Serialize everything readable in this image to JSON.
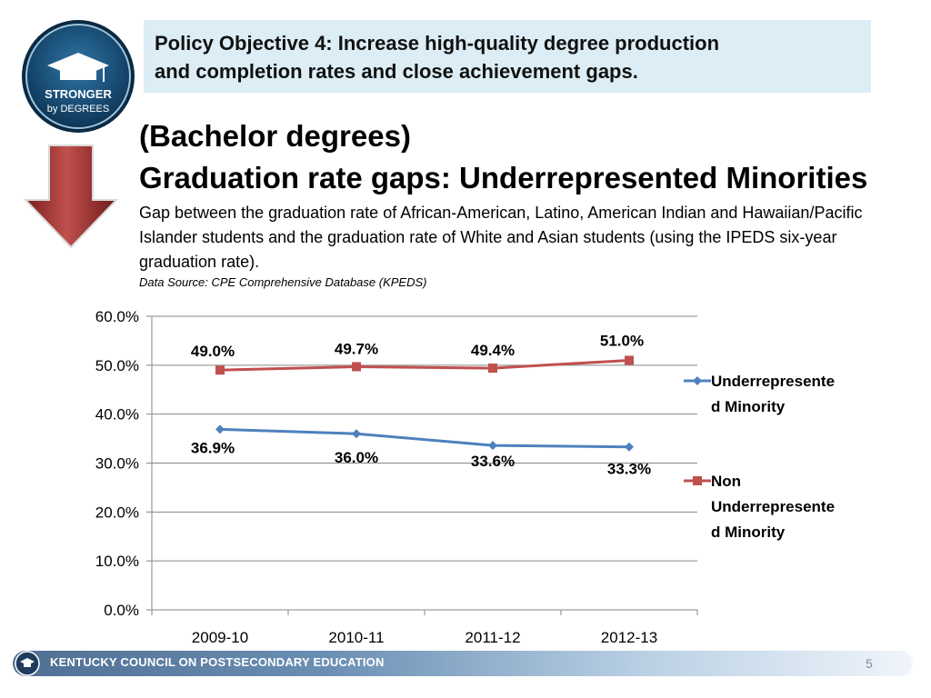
{
  "logo": {
    "line1": "STRONGER",
    "line2": "by DEGREES"
  },
  "objective": {
    "line1": "Policy Objective 4: Increase high-quality degree production",
    "line2": "and completion rates and close achievement gaps."
  },
  "heading": {
    "line1": "(Bachelor degrees)",
    "line2": "Graduation rate gaps:  Underrepresented Minorities"
  },
  "description": "Gap between the graduation rate of African-American, Latino, American Indian and Hawaiian/Pacific Islander students and the graduation rate of White and Asian students (using the IPEDS six-year graduation rate).",
  "source": "Data Source: CPE Comprehensive Database (KPEDS)",
  "footer": {
    "org": "KENTUCKY COUNCIL ON POSTSECONDARY EDUCATION",
    "page": "5"
  },
  "colors": {
    "series1": "#4f81bd",
    "series2": "#c0504d",
    "objective_bg": "#dcedf5"
  },
  "chart_data": {
    "type": "line",
    "categories": [
      "2009-10",
      "2010-11",
      "2011-12",
      "2012-13"
    ],
    "ylim": [
      0,
      60
    ],
    "yticks": [
      "0.0%",
      "10.0%",
      "20.0%",
      "30.0%",
      "40.0%",
      "50.0%",
      "60.0%"
    ],
    "grid": true,
    "legend_position": "right",
    "series": [
      {
        "name": "Underrepresented Minority",
        "legend_lines": [
          "Underrepresente",
          "d Minority"
        ],
        "values": [
          36.9,
          36.0,
          33.6,
          33.3
        ],
        "labels": [
          "36.9%",
          "36.0%",
          "33.6%",
          "33.3%"
        ],
        "marker": "diamond",
        "color": "#4f81bd"
      },
      {
        "name": "Non Underrepresented Minority",
        "legend_lines": [
          "Non",
          "Underrepresente",
          "d Minority"
        ],
        "values": [
          49.0,
          49.7,
          49.4,
          51.0
        ],
        "labels": [
          "49.0%",
          "49.7%",
          "49.4%",
          "51.0%"
        ],
        "marker": "square",
        "color": "#c0504d"
      }
    ]
  }
}
